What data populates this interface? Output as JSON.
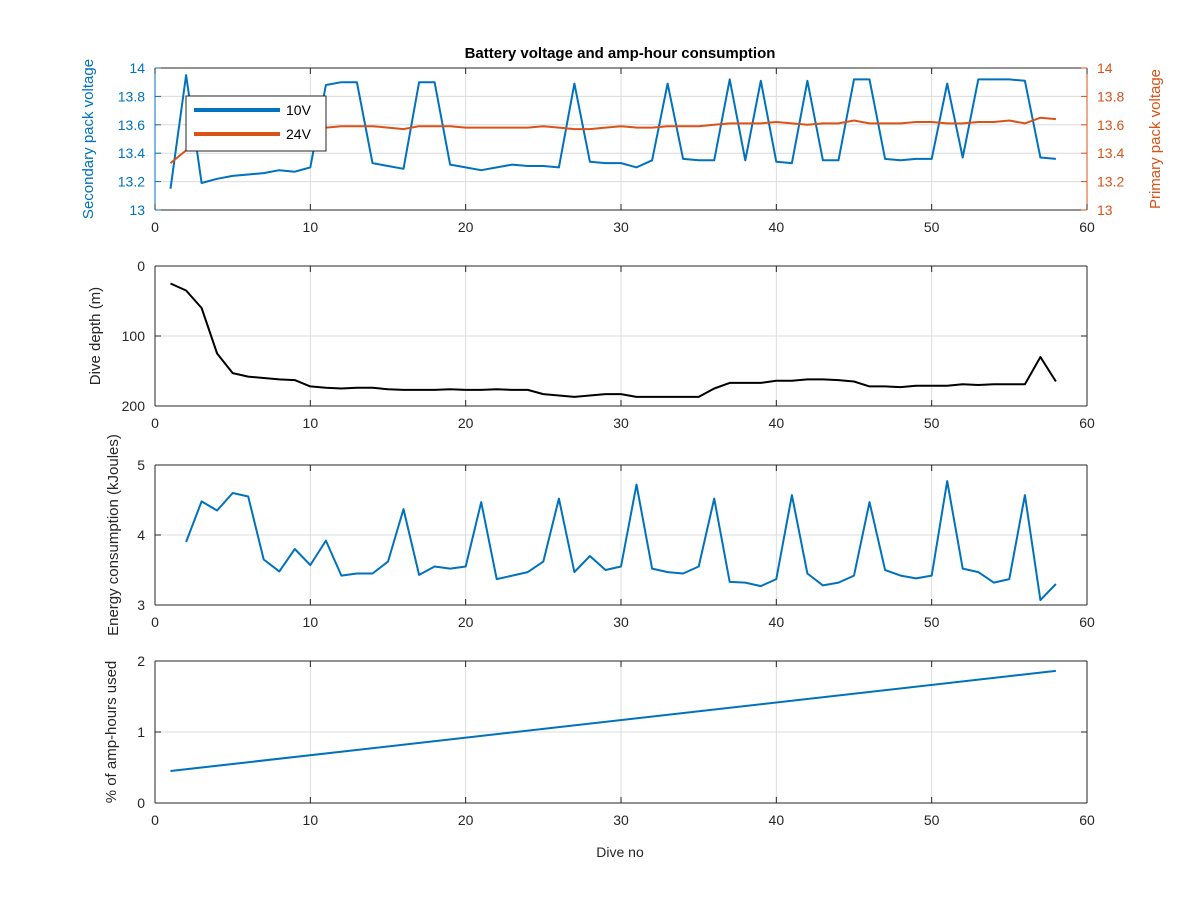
{
  "figure": {
    "title": "Battery voltage and amp-hour consumption",
    "xlabel": "Dive no"
  },
  "colors": {
    "blue": "#0072BD",
    "orange": "#D95319",
    "black": "#000000",
    "grid": "#dcdcdc",
    "axis": "#262626"
  },
  "chart_data": [
    {
      "type": "line",
      "title": "Battery voltage and amp-hour consumption",
      "xlabel": "",
      "ylabel": "Secondary pack voltage",
      "ylabel_right": "Primary pack voltage",
      "xlim": [
        0,
        60
      ],
      "ylim": [
        13,
        14
      ],
      "ylim_right": [
        13,
        14
      ],
      "xticks": [
        0,
        10,
        20,
        30,
        40,
        50,
        60
      ],
      "yticks": [
        13,
        13.2,
        13.4,
        13.6,
        13.8,
        14
      ],
      "yticks_right": [
        13,
        13.2,
        13.4,
        13.6,
        13.8,
        14
      ],
      "grid": true,
      "legend": {
        "placement": "top-left",
        "entries": [
          "10V",
          "24V"
        ]
      },
      "series": [
        {
          "name": "10V",
          "axis": "left",
          "x": [
            1,
            2,
            3,
            4,
            5,
            6,
            7,
            8,
            9,
            10,
            11,
            12,
            13,
            14,
            15,
            16,
            17,
            18,
            19,
            20,
            21,
            22,
            23,
            24,
            25,
            26,
            27,
            28,
            29,
            30,
            31,
            32,
            33,
            34,
            35,
            36,
            37,
            38,
            39,
            40,
            41,
            42,
            43,
            44,
            45,
            46,
            47,
            48,
            49,
            50,
            51,
            52,
            53,
            54,
            55,
            56,
            57,
            58
          ],
          "y": [
            13.15,
            13.95,
            13.19,
            13.22,
            13.24,
            13.25,
            13.26,
            13.28,
            13.27,
            13.3,
            13.88,
            13.9,
            13.9,
            13.33,
            13.31,
            13.29,
            13.9,
            13.9,
            13.32,
            13.3,
            13.28,
            13.3,
            13.32,
            13.31,
            13.31,
            13.3,
            13.89,
            13.34,
            13.33,
            13.33,
            13.3,
            13.35,
            13.89,
            13.36,
            13.35,
            13.35,
            13.92,
            13.35,
            13.91,
            13.34,
            13.33,
            13.91,
            13.35,
            13.35,
            13.92,
            13.92,
            13.36,
            13.35,
            13.36,
            13.36,
            13.89,
            13.37,
            13.92,
            13.92,
            13.92,
            13.91,
            13.37,
            13.36
          ]
        },
        {
          "name": "24V",
          "axis": "right",
          "x": [
            1,
            2,
            3,
            4,
            5,
            6,
            7,
            8,
            9,
            10,
            11,
            12,
            13,
            14,
            15,
            16,
            17,
            18,
            19,
            20,
            21,
            22,
            23,
            24,
            25,
            26,
            27,
            28,
            29,
            30,
            31,
            32,
            33,
            34,
            35,
            36,
            37,
            38,
            39,
            40,
            41,
            42,
            43,
            44,
            45,
            46,
            47,
            48,
            49,
            50,
            51,
            52,
            53,
            54,
            55,
            56,
            57,
            58
          ],
          "y": [
            13.33,
            13.42,
            13.5,
            13.52,
            13.53,
            13.54,
            13.55,
            13.55,
            13.56,
            13.56,
            13.58,
            13.59,
            13.59,
            13.59,
            13.58,
            13.57,
            13.59,
            13.59,
            13.59,
            13.58,
            13.58,
            13.58,
            13.58,
            13.58,
            13.59,
            13.58,
            13.57,
            13.57,
            13.58,
            13.59,
            13.58,
            13.58,
            13.59,
            13.59,
            13.59,
            13.6,
            13.61,
            13.61,
            13.61,
            13.62,
            13.61,
            13.6,
            13.61,
            13.61,
            13.63,
            13.61,
            13.61,
            13.61,
            13.62,
            13.62,
            13.61,
            13.61,
            13.62,
            13.62,
            13.63,
            13.61,
            13.65,
            13.64
          ]
        }
      ]
    },
    {
      "type": "line",
      "xlabel": "",
      "ylabel": "Dive depth (m)",
      "xlim": [
        0,
        60
      ],
      "ylim": [
        200,
        0
      ],
      "reverse_y": true,
      "xticks": [
        0,
        10,
        20,
        30,
        40,
        50,
        60
      ],
      "yticks": [
        0,
        100,
        200
      ],
      "grid": true,
      "series": [
        {
          "x": [
            1,
            2,
            3,
            4,
            5,
            6,
            7,
            8,
            9,
            10,
            11,
            12,
            13,
            14,
            15,
            16,
            17,
            18,
            19,
            20,
            21,
            22,
            23,
            24,
            25,
            26,
            27,
            28,
            29,
            30,
            31,
            32,
            33,
            34,
            35,
            36,
            37,
            38,
            39,
            40,
            41,
            42,
            43,
            44,
            45,
            46,
            47,
            48,
            49,
            50,
            51,
            52,
            53,
            54,
            55,
            56,
            57,
            58
          ],
          "y": [
            25,
            35,
            60,
            125,
            153,
            158,
            160,
            162,
            163,
            172,
            174,
            175,
            174,
            174,
            176,
            177,
            177,
            177,
            176,
            177,
            177,
            176,
            177,
            177,
            183,
            185,
            187,
            185,
            183,
            183,
            187,
            187,
            187,
            187,
            187,
            175,
            167,
            167,
            167,
            164,
            164,
            162,
            162,
            163,
            165,
            172,
            172,
            173,
            171,
            171,
            171,
            169,
            170,
            169,
            169,
            169,
            130,
            165
          ]
        }
      ]
    },
    {
      "type": "line",
      "xlabel": "",
      "ylabel": "Energy consumption (kJoules)",
      "xlim": [
        0,
        60
      ],
      "ylim": [
        3,
        5
      ],
      "xticks": [
        0,
        10,
        20,
        30,
        40,
        50,
        60
      ],
      "yticks": [
        3,
        4,
        5
      ],
      "grid": true,
      "series": [
        {
          "x": [
            2,
            3,
            4,
            5,
            6,
            7,
            8,
            9,
            10,
            11,
            12,
            13,
            14,
            15,
            16,
            17,
            18,
            19,
            20,
            21,
            22,
            23,
            24,
            25,
            26,
            27,
            28,
            29,
            30,
            31,
            32,
            33,
            34,
            35,
            36,
            37,
            38,
            39,
            40,
            41,
            42,
            43,
            44,
            45,
            46,
            47,
            48,
            49,
            50,
            51,
            52,
            53,
            54,
            55,
            56,
            57,
            58
          ],
          "y": [
            3.9,
            4.48,
            4.35,
            4.6,
            4.55,
            3.65,
            3.48,
            3.8,
            3.57,
            3.92,
            3.42,
            3.45,
            3.45,
            3.62,
            4.37,
            3.43,
            3.55,
            3.52,
            3.55,
            4.47,
            3.37,
            3.42,
            3.47,
            3.62,
            4.52,
            3.47,
            3.7,
            3.5,
            3.55,
            4.72,
            3.52,
            3.47,
            3.45,
            3.55,
            4.52,
            3.33,
            3.32,
            3.27,
            3.37,
            4.57,
            3.45,
            3.28,
            3.32,
            3.42,
            4.47,
            3.5,
            3.42,
            3.38,
            3.42,
            4.77,
            3.52,
            3.47,
            3.32,
            3.37,
            4.57,
            3.07,
            3.3
          ]
        }
      ]
    },
    {
      "type": "line",
      "xlabel": "Dive no",
      "ylabel": "% of amp-hours used",
      "xlim": [
        0,
        60
      ],
      "ylim": [
        0,
        2
      ],
      "xticks": [
        0,
        10,
        20,
        30,
        40,
        50,
        60
      ],
      "yticks": [
        0,
        1,
        2
      ],
      "grid": true,
      "series": [
        {
          "x": [
            1,
            58
          ],
          "y": [
            0.45,
            1.86
          ]
        }
      ]
    }
  ]
}
